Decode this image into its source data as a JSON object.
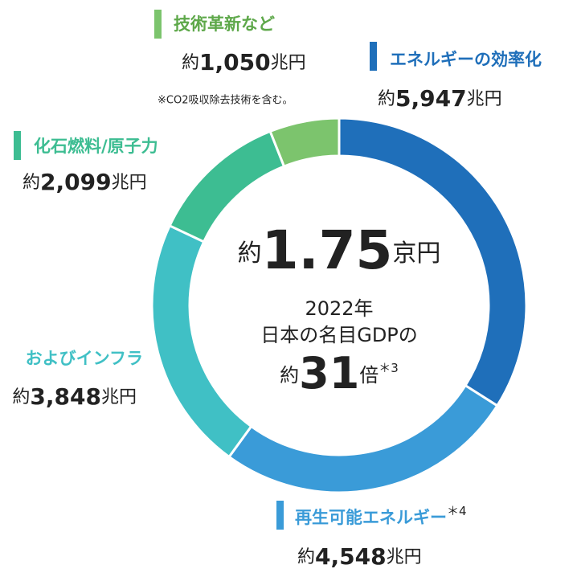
{
  "chart_data": {
    "type": "donut",
    "value_prefix": "約",
    "value_unit": "兆円",
    "categories": [
      "エネルギーの効率化",
      "再生可能エネルギー",
      "およびインフラ",
      "化石燃料/原子力",
      "技術革新など"
    ],
    "values": [
      5947,
      4548,
      3848,
      2099,
      1050
    ],
    "value_labels": [
      "5,947",
      "4,548",
      "3,848",
      "2,099",
      "1,050"
    ],
    "colors": [
      "#1f6fba",
      "#3a9bd8",
      "#40c0c5",
      "#3dbd92",
      "#7cc46d"
    ],
    "label_colors": [
      "#1f6fba",
      "#3a9bd8",
      "#40c0c5",
      "#3dbd92",
      "#5ea84a"
    ],
    "footnotes": {
      "1": "＊4"
    },
    "notes": {
      "4": "※CO2吸収除去技術を含む。"
    },
    "center": {
      "total_prefix": "約",
      "total": "1.75",
      "total_unit": "京円",
      "year": "2022年",
      "line": "日本の名目GDPの",
      "ratio_prefix": "約",
      "ratio": "31",
      "ratio_unit": "倍",
      "ratio_note": "＊3"
    }
  }
}
